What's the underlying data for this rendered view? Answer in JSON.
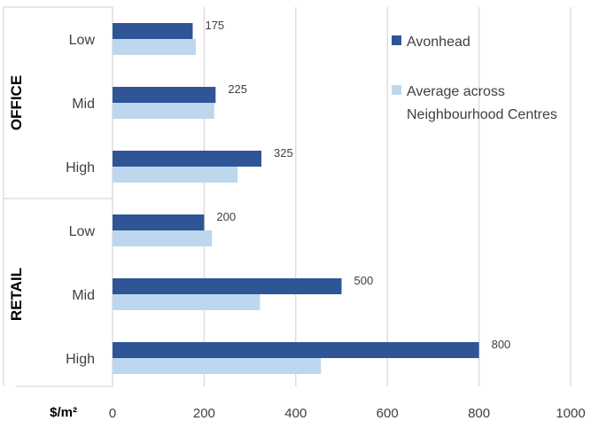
{
  "chart_data": {
    "type": "bar",
    "orientation": "horizontal",
    "groups": [
      {
        "name": "OFFICE",
        "categories": [
          "Low",
          "Mid",
          "High"
        ]
      },
      {
        "name": "RETAIL",
        "categories": [
          "Low",
          "Mid",
          "High"
        ]
      }
    ],
    "series": [
      {
        "name": "Avonhead",
        "color": "#2F5597",
        "values": [
          175,
          225,
          325,
          200,
          500,
          800
        ],
        "data_labels": [
          "175",
          "225",
          "325",
          "200",
          "500",
          "800"
        ]
      },
      {
        "name": "Average across Neighbourhood Centres",
        "name_lines": [
          "Average across",
          "Neighbourhood Centres"
        ],
        "color": "#BDD7EE",
        "values": [
          182,
          222,
          273,
          217,
          322,
          455
        ]
      }
    ],
    "x_ticks": [
      "0",
      "200",
      "400",
      "600",
      "800",
      "1000"
    ],
    "xlim": [
      0,
      1000
    ],
    "unit_label": "$/m²",
    "grid": true,
    "legend_position": "right"
  }
}
